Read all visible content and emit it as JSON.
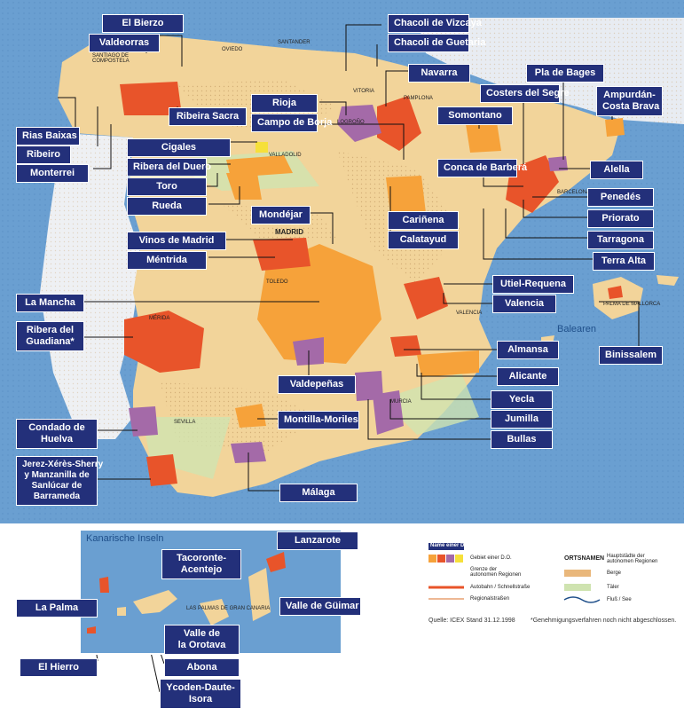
{
  "regions": {
    "el_bierzo": "El Bierzo",
    "valdeorras": "Valdeorras",
    "rias_baixas": "Rias Baixas",
    "ribeiro": "Ribeiro",
    "monterrei": "Monterrei",
    "ribeira_sacra": "Ribeira Sacra",
    "cigales": "Cigales",
    "ribera_del_duero": "Ribera del Duero",
    "toro": "Toro",
    "rueda": "Rueda",
    "chacoli_vizcaya": "Chacoli de Vizcaya",
    "chacoli_guetaria": "Chacoli de Guetaria",
    "navarra": "Navarra",
    "rioja": "Rioja",
    "campo_de_borja": "Campo de Borja",
    "somontano": "Somontano",
    "costers_del_segre": "Costers del Segre",
    "pla_de_bages": "Pla de Bages",
    "ampurdan": "Ampurdán-\nCosta Brava",
    "alella": "Alella",
    "conca_de_barbera": "Conca de Barberá",
    "penedes": "Penedés",
    "priorato": "Priorato",
    "tarragona": "Tarragona",
    "terra_alta": "Terra Alta",
    "carinena": "Cariñena",
    "calatayud": "Calatayud",
    "mondejar": "Mondéjar",
    "vinos_de_madrid": "Vinos de Madrid",
    "mentrida": "Méntrida",
    "la_mancha": "La Mancha",
    "ribera_del_guadiana": "Ribera del\nGuadiana*",
    "utiel_requena": "Utiel-Requena",
    "valencia": "Valencia",
    "binissalem": "Binissalem",
    "almansa": "Almansa",
    "alicante": "Alicante",
    "yecla": "Yecla",
    "jumilla": "Jumilla",
    "bullas": "Bullas",
    "valdepenas": "Valdepeñas",
    "montilla_moriles": "Montilla-Moriles",
    "condado_de_huelva": "Condado de\nHuelva",
    "jerez": "Jerez-Xérès-Sherry\ny Manzanilla de\nSanlúcar de\nBarrameda",
    "malaga": "Málaga",
    "lanzarote": "Lanzarote",
    "tacoronte": "Tacoronte-\nAcentejo",
    "la_palma": "La Palma",
    "valle_de_guimar": "Valle de Güimar",
    "el_hierro": "El Hierro",
    "valle_de_la_orotava": "Valle de\nla Orotava",
    "abona": "Abona",
    "ycoden": "Ycoden-Daute-\nIsora"
  },
  "cities": {
    "santiago": "SANTIAGO DE\nCOMPOSTELA",
    "oviedo": "OVIEDO",
    "santander": "SANTANDER",
    "vitoria": "VITORIA",
    "pamplona": "PAMPLONA",
    "logrono": "LOGROÑO",
    "valladolid": "VALLADOLID",
    "madrid": "MADRID",
    "toledo": "TOLEDO",
    "barcelona": "BARCELONA",
    "palma": "PALMA DE MALLORCA",
    "valencia": "VALENCIA",
    "merida": "MÉRIDA",
    "murcia": "MURCIA",
    "sevilla": "SEVILLA",
    "las_palmas": "LAS PALMAS DE GRAN CANARIA"
  },
  "sea_labels": {
    "balearen": "Balearen",
    "kanarische_inseln": "Kanarische Inseln"
  },
  "legend": {
    "do_name": "Name einer D.O.",
    "do_area": "Gebiet einer D.O.",
    "border": "Grenze der\nautonomen Regionen",
    "highway": "Autobahn / Schnellstraße",
    "regional": "Regionalstraßen",
    "capitals_head": "ORTSNAMEN",
    "capitals": "Hauptstädte der\nautonomen Regionen",
    "mountains": "Berge",
    "valleys": "Täler",
    "rivers": "Fluß / See"
  },
  "source": "Quelle: ICEX Stand 31.12.1998",
  "footnote": "*Genehmigungsverfahren noch nicht abgeschlossen.",
  "colors": {
    "sea": "#6a9fd1",
    "land": "#f2d49a",
    "mountain": "#e9b77b",
    "label_bg": "#23307a",
    "do_orange": "#f6a23a",
    "do_red": "#e8542a",
    "do_purple": "#a46aa8"
  }
}
